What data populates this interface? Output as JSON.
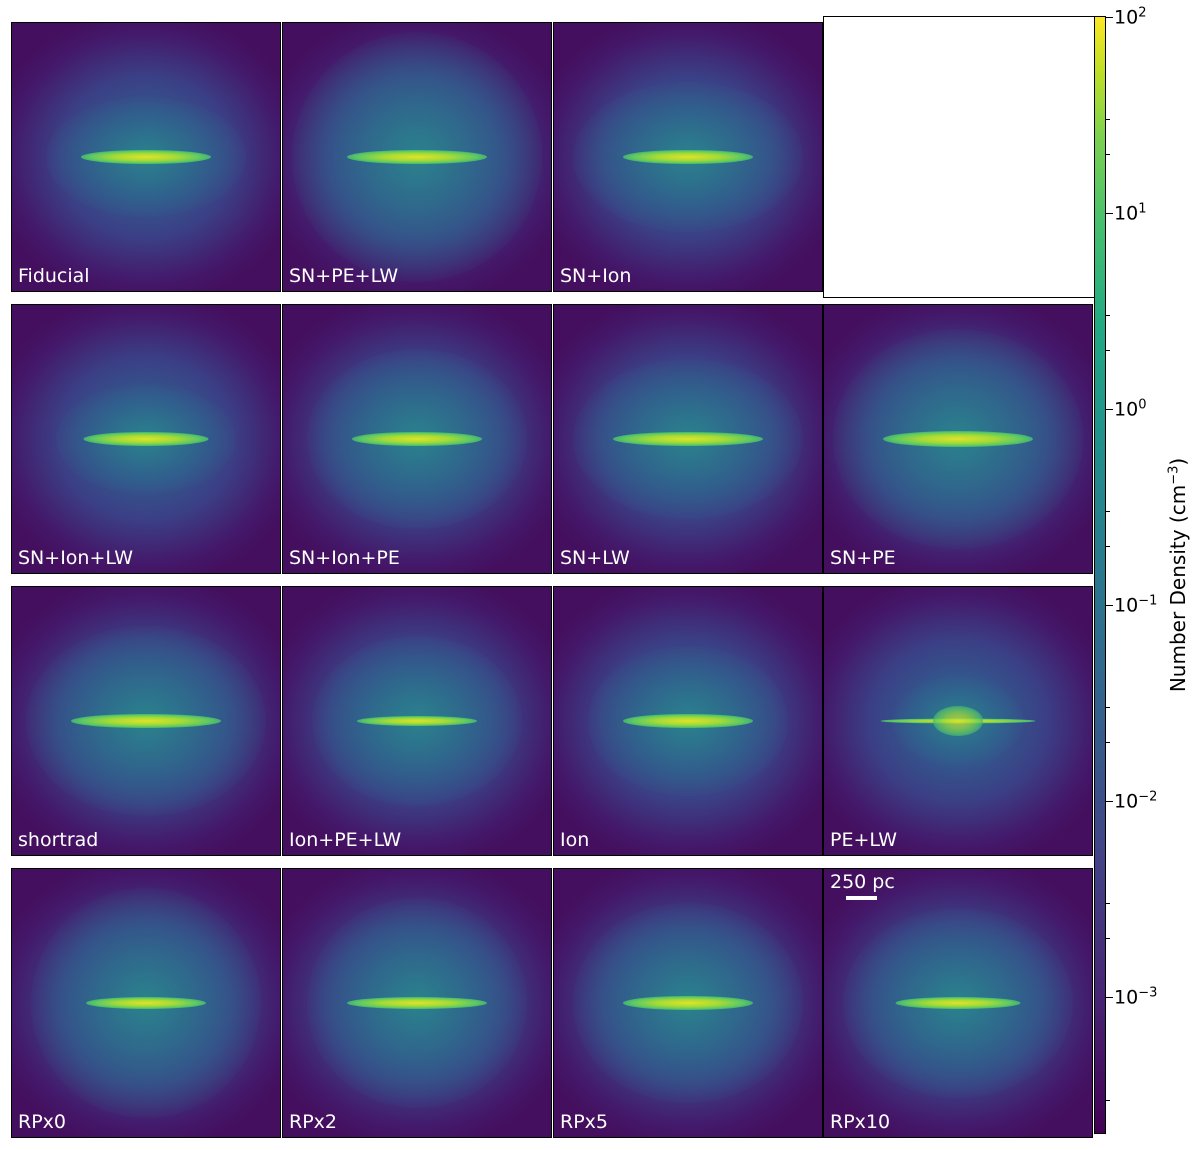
{
  "figure": {
    "rows": [
      [
        "Fiducial",
        "SN+PE+LW",
        "SN+Ion",
        null
      ],
      [
        "SN+Ion+LW",
        "SN+Ion+PE",
        "SN+LW",
        "SN+PE"
      ],
      [
        "shortrad",
        "Ion+PE+LW",
        "Ion",
        "PE+LW"
      ],
      [
        "RPx0",
        "RPx2",
        "RPx5",
        "RPx10"
      ]
    ],
    "scalebar_label": "250 pc"
  },
  "colorbar": {
    "title": "Number Density (cm",
    "title_unit_exp": "−3",
    "title_close": ")",
    "ticks": [
      {
        "base": "10",
        "exp": "2"
      },
      {
        "base": "10",
        "exp": "1"
      },
      {
        "base": "10",
        "exp": "0"
      },
      {
        "base": "10",
        "exp": "−1"
      },
      {
        "base": "10",
        "exp": "−2"
      },
      {
        "base": "10",
        "exp": "−3"
      }
    ],
    "colormap": [
      "#440154",
      "#414487",
      "#2a788e",
      "#22a884",
      "#7ad151",
      "#fde725"
    ]
  }
}
